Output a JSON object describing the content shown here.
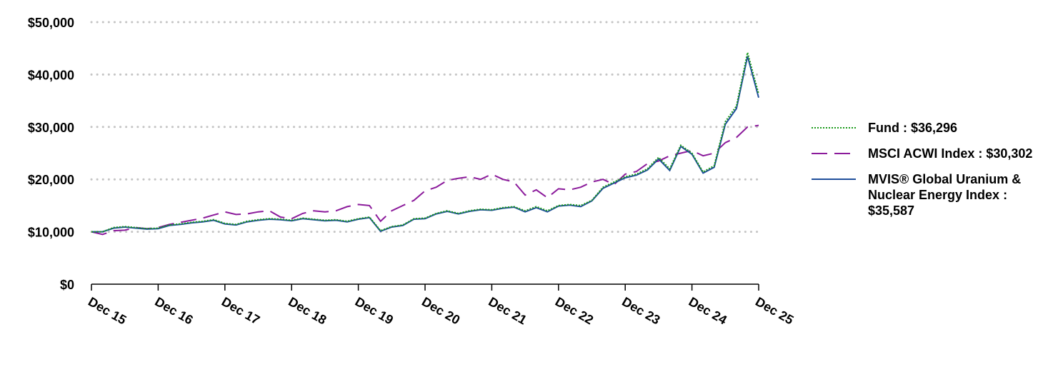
{
  "chart_data": {
    "type": "line",
    "categories": [
      "Dec 15",
      null,
      null,
      null,
      null,
      null,
      "Dec 16",
      null,
      null,
      null,
      null,
      null,
      "Dec 17",
      null,
      null,
      null,
      null,
      null,
      "Dec 18",
      null,
      null,
      null,
      null,
      null,
      "Dec 19",
      null,
      null,
      null,
      null,
      null,
      "Dec 20",
      null,
      null,
      null,
      null,
      null,
      "Dec 21",
      null,
      null,
      null,
      null,
      null,
      "Dec 22",
      null,
      null,
      null,
      null,
      null,
      "Dec 23",
      null,
      null,
      null,
      null,
      null,
      "Dec 24",
      null,
      null,
      null,
      null,
      null,
      "Dec 25"
    ],
    "series": [
      {
        "name": "MSCI ACWI Index : $30,302",
        "color": "#8b1a9b",
        "dash": "dashed",
        "values": [
          10000,
          9500,
          10200,
          10300,
          10800,
          10600,
          10800,
          11400,
          11800,
          12200,
          12600,
          13200,
          13800,
          13300,
          13400,
          13800,
          14000,
          12800,
          12500,
          13500,
          14000,
          13800,
          14000,
          14800,
          15200,
          15000,
          12000,
          14000,
          15000,
          16000,
          17800,
          18500,
          19800,
          20200,
          20500,
          20000,
          21000,
          20000,
          19500,
          17000,
          18000,
          16500,
          18200,
          18000,
          18500,
          19500,
          20000,
          19000,
          21000,
          21500,
          23000,
          23500,
          24500,
          25000,
          25500,
          24500,
          25000,
          27000,
          28000,
          30000,
          30302
        ]
      },
      {
        "name": "MVIS® Global Uranium & Nuclear Energy Index : $35,587",
        "color": "#1f4e9b",
        "dash": "solid",
        "values": [
          10000,
          10000,
          10700,
          10900,
          10700,
          10500,
          10600,
          11200,
          11400,
          11700,
          11900,
          12200,
          11500,
          11300,
          11900,
          12200,
          12400,
          12300,
          12100,
          12500,
          12300,
          12100,
          12200,
          11900,
          12400,
          12700,
          10100,
          10900,
          11200,
          12400,
          12500,
          13400,
          13900,
          13400,
          13900,
          14200,
          14100,
          14500,
          14700,
          13800,
          14600,
          13800,
          14900,
          15100,
          14800,
          15900,
          18300,
          19300,
          20300,
          20800,
          21800,
          23900,
          21700,
          26300,
          24800,
          21200,
          22300,
          30500,
          33500,
          43500,
          35587
        ]
      },
      {
        "name": "Fund : $36,296",
        "color": "#1a9a1a",
        "dash": "dotted",
        "values": [
          10000,
          10000,
          10800,
          11000,
          10800,
          10600,
          10700,
          11300,
          11500,
          11800,
          12000,
          12300,
          11600,
          11400,
          12000,
          12300,
          12500,
          12400,
          12200,
          12600,
          12400,
          12200,
          12300,
          12000,
          12500,
          12800,
          10200,
          11000,
          11300,
          12500,
          12600,
          13500,
          14000,
          13500,
          14000,
          14300,
          14200,
          14600,
          14800,
          14000,
          14800,
          14000,
          15000,
          15200,
          15000,
          16000,
          18500,
          19500,
          20500,
          21000,
          22000,
          24200,
          22000,
          26500,
          25000,
          21400,
          22600,
          31000,
          34000,
          44200,
          36296
        ]
      }
    ],
    "ylim": [
      0,
      50000
    ],
    "yticks": [
      {
        "value": 0,
        "label": "$0"
      },
      {
        "value": 10000,
        "label": "$10,000"
      },
      {
        "value": 20000,
        "label": "$20,000"
      },
      {
        "value": 30000,
        "label": "$30,000"
      },
      {
        "value": 40000,
        "label": "$40,000"
      },
      {
        "value": 50000,
        "label": "$50,000"
      }
    ],
    "grid": true,
    "legend": "right"
  }
}
